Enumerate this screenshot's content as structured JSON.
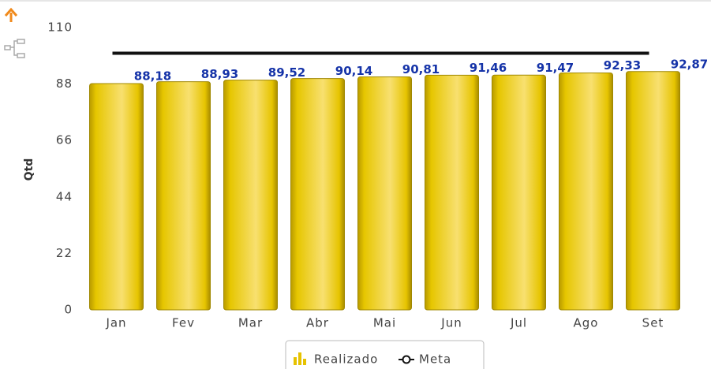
{
  "chart_data": {
    "type": "bar",
    "y_label": "Qtd",
    "categories": [
      "Jan",
      "Fev",
      "Mar",
      "Abr",
      "Mai",
      "Jun",
      "Jul",
      "Ago",
      "Set"
    ],
    "series": [
      {
        "name": "Realizado",
        "color": "#e6c200",
        "values": [
          88.18,
          88.93,
          89.52,
          90.14,
          90.81,
          91.46,
          91.47,
          92.33,
          92.87
        ],
        "value_labels": [
          "88,18",
          "88,93",
          "89,52",
          "90,14",
          "90,81",
          "91,46",
          "91,47",
          "92,33",
          "92,87"
        ]
      },
      {
        "name": "Meta",
        "type": "line",
        "color": "#111111",
        "values": [
          100,
          100,
          100,
          100,
          100,
          100,
          100,
          100,
          100
        ]
      }
    ],
    "ylim": [
      0,
      110
    ],
    "yticks": [
      0,
      22,
      44,
      66,
      88,
      110
    ]
  }
}
